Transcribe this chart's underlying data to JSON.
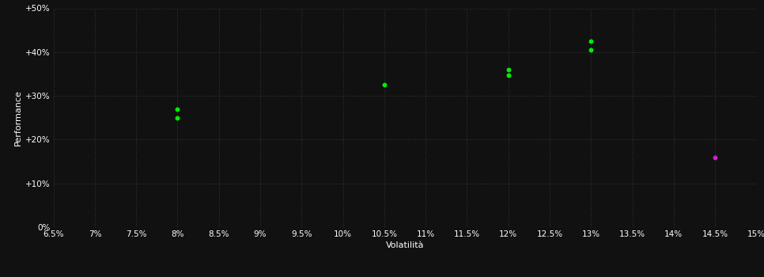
{
  "background_color": "#111111",
  "plot_bg_color": "#111111",
  "grid_color": "#333333",
  "text_color": "#ffffff",
  "xlabel": "Volatilità",
  "ylabel": "Performance",
  "xlim": [
    0.065,
    0.15
  ],
  "ylim": [
    0.0,
    0.5
  ],
  "xticks": [
    0.065,
    0.07,
    0.075,
    0.08,
    0.085,
    0.09,
    0.095,
    0.1,
    0.105,
    0.11,
    0.115,
    0.12,
    0.125,
    0.13,
    0.135,
    0.14,
    0.145,
    0.15
  ],
  "yticks": [
    0.0,
    0.1,
    0.2,
    0.3,
    0.4,
    0.5
  ],
  "ytick_labels": [
    "0%",
    "+10%",
    "+20%",
    "+30%",
    "+40%",
    "+50%"
  ],
  "xtick_labels": [
    "6.5%",
    "7%",
    "7.5%",
    "8%",
    "8.5%",
    "9%",
    "9.5%",
    "10%",
    "10.5%",
    "11%",
    "11.5%",
    "12%",
    "12.5%",
    "13%",
    "13.5%",
    "14%",
    "14.5%",
    "15%"
  ],
  "green_points": [
    [
      0.08,
      0.27
    ],
    [
      0.08,
      0.25
    ],
    [
      0.105,
      0.325
    ],
    [
      0.12,
      0.36
    ],
    [
      0.12,
      0.348
    ],
    [
      0.13,
      0.425
    ],
    [
      0.13,
      0.405
    ]
  ],
  "magenta_points": [
    [
      0.145,
      0.16
    ]
  ],
  "green_color": "#00ee00",
  "magenta_color": "#cc22cc",
  "marker_size": 18,
  "font_size_axis_label": 8,
  "font_size_tick": 7.5
}
